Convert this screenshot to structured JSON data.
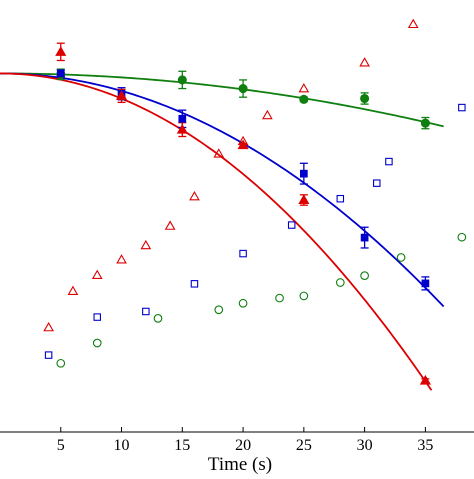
{
  "chart_data": {
    "type": "scatter",
    "xlabel": "Time (s)",
    "ylabel": "",
    "title": "",
    "xlim": [
      0,
      39
    ],
    "ylim": [
      0,
      1
    ],
    "xticks": [
      5,
      10,
      15,
      20,
      25,
      30,
      35
    ],
    "grid": false,
    "legend": "none",
    "colors": {
      "green": "#0f7f0f",
      "blue": "#0000cc",
      "red": "#dd0000",
      "axis": "#000000"
    },
    "series": [
      {
        "marker": "circle-filled",
        "color": "#0f7f0f",
        "errorbars": true,
        "points": [
          {
            "x": 5,
            "y": 0.828,
            "err": 0.012
          },
          {
            "x": 15,
            "y": 0.815,
            "err": 0.02
          },
          {
            "x": 20,
            "y": 0.795,
            "err": 0.02
          },
          {
            "x": 25,
            "y": 0.77,
            "err": 0.005
          },
          {
            "x": 30,
            "y": 0.772,
            "err": 0.013
          },
          {
            "x": 35,
            "y": 0.715,
            "err": 0.013
          }
        ]
      },
      {
        "marker": "square-filled",
        "color": "#0000cc",
        "errorbars": true,
        "points": [
          {
            "x": 5,
            "y": 0.83,
            "err": 0.008
          },
          {
            "x": 10,
            "y": 0.783,
            "err": 0.014
          },
          {
            "x": 15,
            "y": 0.725,
            "err": 0.02
          },
          {
            "x": 25,
            "y": 0.598,
            "err": 0.024
          },
          {
            "x": 30,
            "y": 0.45,
            "err": 0.024
          },
          {
            "x": 35,
            "y": 0.344,
            "err": 0.015
          }
        ]
      },
      {
        "marker": "triangle-filled",
        "color": "#dd0000",
        "errorbars": true,
        "points": [
          {
            "x": 5,
            "y": 0.88,
            "err": 0.02
          },
          {
            "x": 10,
            "y": 0.778,
            "err": 0.015
          },
          {
            "x": 15,
            "y": 0.7,
            "err": 0.016
          },
          {
            "x": 20,
            "y": 0.664,
            "err": 0.004
          },
          {
            "x": 25,
            "y": 0.537,
            "err": 0.012
          },
          {
            "x": 35,
            "y": 0.119,
            "err": 0.004
          }
        ]
      },
      {
        "marker": "circle-open",
        "color": "#0f7f0f",
        "errorbars": false,
        "points": [
          {
            "x": 5,
            "y": 0.159
          },
          {
            "x": 8,
            "y": 0.206
          },
          {
            "x": 13,
            "y": 0.263
          },
          {
            "x": 18,
            "y": 0.283
          },
          {
            "x": 20,
            "y": 0.298
          },
          {
            "x": 23,
            "y": 0.31
          },
          {
            "x": 25,
            "y": 0.315
          },
          {
            "x": 28,
            "y": 0.346
          },
          {
            "x": 30,
            "y": 0.362
          },
          {
            "x": 33,
            "y": 0.404
          },
          {
            "x": 38,
            "y": 0.451
          }
        ]
      },
      {
        "marker": "square-open",
        "color": "#0000cc",
        "errorbars": false,
        "points": [
          {
            "x": 4,
            "y": 0.178
          },
          {
            "x": 8,
            "y": 0.266
          },
          {
            "x": 12,
            "y": 0.279
          },
          {
            "x": 16,
            "y": 0.343
          },
          {
            "x": 20,
            "y": 0.413
          },
          {
            "x": 24,
            "y": 0.479
          },
          {
            "x": 28,
            "y": 0.54
          },
          {
            "x": 31,
            "y": 0.576
          },
          {
            "x": 32,
            "y": 0.626
          },
          {
            "x": 38,
            "y": 0.751
          }
        ]
      },
      {
        "marker": "triangle-open",
        "color": "#dd0000",
        "errorbars": false,
        "points": [
          {
            "x": 4,
            "y": 0.242
          },
          {
            "x": 6,
            "y": 0.326
          },
          {
            "x": 8,
            "y": 0.363
          },
          {
            "x": 10,
            "y": 0.399
          },
          {
            "x": 12,
            "y": 0.432
          },
          {
            "x": 14,
            "y": 0.477
          },
          {
            "x": 16,
            "y": 0.545
          },
          {
            "x": 18,
            "y": 0.644
          },
          {
            "x": 20,
            "y": 0.673
          },
          {
            "x": 22,
            "y": 0.733
          },
          {
            "x": 25,
            "y": 0.795
          },
          {
            "x": 30,
            "y": 0.855
          },
          {
            "x": 34,
            "y": 0.944
          }
        ]
      }
    ],
    "fits": [
      {
        "color": "#0f7f0f",
        "x": [
          0,
          36.5
        ],
        "y0": 0.83,
        "a": 9.2e-05
      },
      {
        "color": "#0000cc",
        "x": [
          0,
          36.5
        ],
        "y0": 0.83,
        "a": 0.000405
      },
      {
        "color": "#dd0000",
        "x": [
          0,
          35.5
        ],
        "y0": 0.83,
        "a": 0.000582
      }
    ]
  }
}
